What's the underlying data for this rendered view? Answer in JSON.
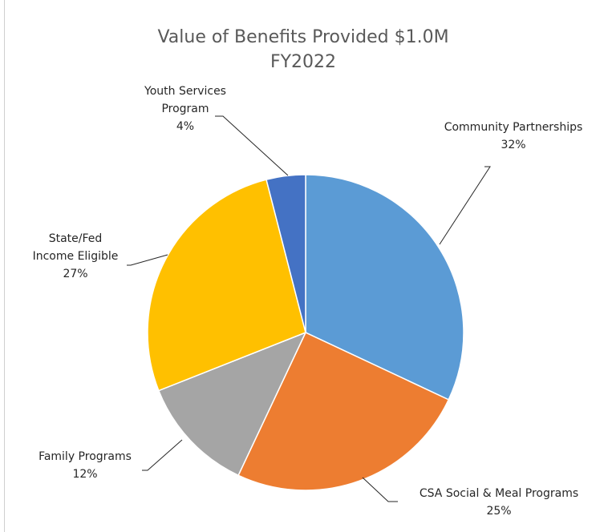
{
  "chart_data": {
    "type": "pie",
    "title": "Value of Benefits Provided $1.0M",
    "subtitle": "FY2022",
    "slices": [
      {
        "label_lines": [
          "Community Partnerships"
        ],
        "percent_label": "32%",
        "value": 32,
        "color": "#5B9BD5"
      },
      {
        "label_lines": [
          "CSA Social & Meal Programs"
        ],
        "percent_label": "25%",
        "value": 25,
        "color": "#ED7D31"
      },
      {
        "label_lines": [
          "Family Programs"
        ],
        "percent_label": "12%",
        "value": 12,
        "color": "#A5A5A5"
      },
      {
        "label_lines": [
          "State/Fed",
          "Income Eligible"
        ],
        "percent_label": "27%",
        "value": 27,
        "color": "#FFC000"
      },
      {
        "label_lines": [
          "Youth Services",
          "Program"
        ],
        "percent_label": "4%",
        "value": 4,
        "color": "#4472C4"
      }
    ],
    "start_angle_deg": 0,
    "direction": "clockwise",
    "legend": "none"
  }
}
